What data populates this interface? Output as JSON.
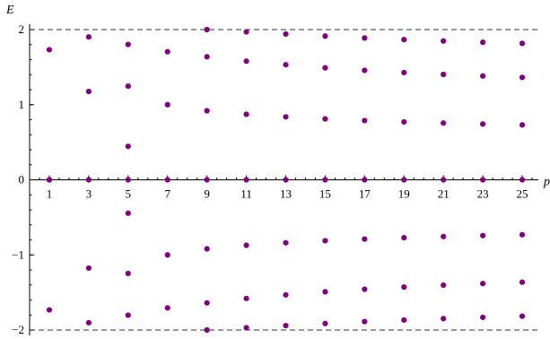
{
  "chart_data": {
    "type": "scatter",
    "title": "",
    "xlabel": "p",
    "ylabel": "E",
    "xlim": [
      0,
      26
    ],
    "ylim": [
      -2,
      2
    ],
    "xticks": [
      1,
      3,
      5,
      7,
      9,
      11,
      13,
      15,
      17,
      19,
      21,
      23,
      25
    ],
    "yticks": [
      -2,
      -1,
      0,
      1,
      2
    ],
    "ytick_labels": [
      "−2",
      "−1",
      "0",
      "1",
      "2"
    ],
    "reference_lines_y": [
      2,
      -2
    ],
    "reference_line_style": "dashed",
    "grid": false,
    "marker_color": "#800080",
    "points": [
      [
        1,
        1.732
      ],
      [
        1,
        0
      ],
      [
        1,
        0
      ],
      [
        1,
        -1.732
      ],
      [
        3,
        1.902
      ],
      [
        3,
        1.176
      ],
      [
        3,
        0
      ],
      [
        3,
        -1.176
      ],
      [
        3,
        -1.902
      ],
      [
        5,
        1.802
      ],
      [
        5,
        1.247
      ],
      [
        5,
        0.445
      ],
      [
        5,
        0
      ],
      [
        5,
        -0.445
      ],
      [
        5,
        -1.247
      ],
      [
        5,
        -1.802
      ],
      [
        7,
        1.705
      ],
      [
        7,
        1.0
      ],
      [
        7,
        0
      ],
      [
        7,
        -1.0
      ],
      [
        7,
        -1.705
      ],
      [
        9,
        2.0
      ],
      [
        9,
        1.638
      ],
      [
        9,
        0.919
      ],
      [
        9,
        0
      ],
      [
        9,
        -0.919
      ],
      [
        9,
        -1.638
      ],
      [
        9,
        -2.0
      ],
      [
        11,
        1.97
      ],
      [
        11,
        1.58
      ],
      [
        11,
        0.872
      ],
      [
        11,
        0
      ],
      [
        11,
        -0.872
      ],
      [
        11,
        -1.58
      ],
      [
        11,
        -1.97
      ],
      [
        13,
        1.941
      ],
      [
        13,
        1.532
      ],
      [
        13,
        0.838
      ],
      [
        13,
        0
      ],
      [
        13,
        -0.838
      ],
      [
        13,
        -1.532
      ],
      [
        13,
        -1.941
      ],
      [
        15,
        1.913
      ],
      [
        15,
        1.491
      ],
      [
        15,
        0.811
      ],
      [
        15,
        0
      ],
      [
        15,
        -0.811
      ],
      [
        15,
        -1.491
      ],
      [
        15,
        -1.913
      ],
      [
        17,
        1.888
      ],
      [
        17,
        1.457
      ],
      [
        17,
        0.789
      ],
      [
        17,
        0
      ],
      [
        17,
        -0.789
      ],
      [
        17,
        -1.457
      ],
      [
        17,
        -1.888
      ],
      [
        19,
        1.867
      ],
      [
        19,
        1.428
      ],
      [
        19,
        0.771
      ],
      [
        19,
        0
      ],
      [
        19,
        -0.771
      ],
      [
        19,
        -1.428
      ],
      [
        19,
        -1.867
      ],
      [
        21,
        1.848
      ],
      [
        21,
        1.403
      ],
      [
        21,
        0.756
      ],
      [
        21,
        0
      ],
      [
        21,
        -0.756
      ],
      [
        21,
        -1.403
      ],
      [
        21,
        -1.848
      ],
      [
        23,
        1.831
      ],
      [
        23,
        1.382
      ],
      [
        23,
        0.743
      ],
      [
        23,
        0
      ],
      [
        23,
        -0.743
      ],
      [
        23,
        -1.382
      ],
      [
        23,
        -1.831
      ],
      [
        25,
        1.816
      ],
      [
        25,
        1.363
      ],
      [
        25,
        0.731
      ],
      [
        25,
        0
      ],
      [
        25,
        -0.731
      ],
      [
        25,
        -1.363
      ],
      [
        25,
        -1.816
      ]
    ]
  }
}
